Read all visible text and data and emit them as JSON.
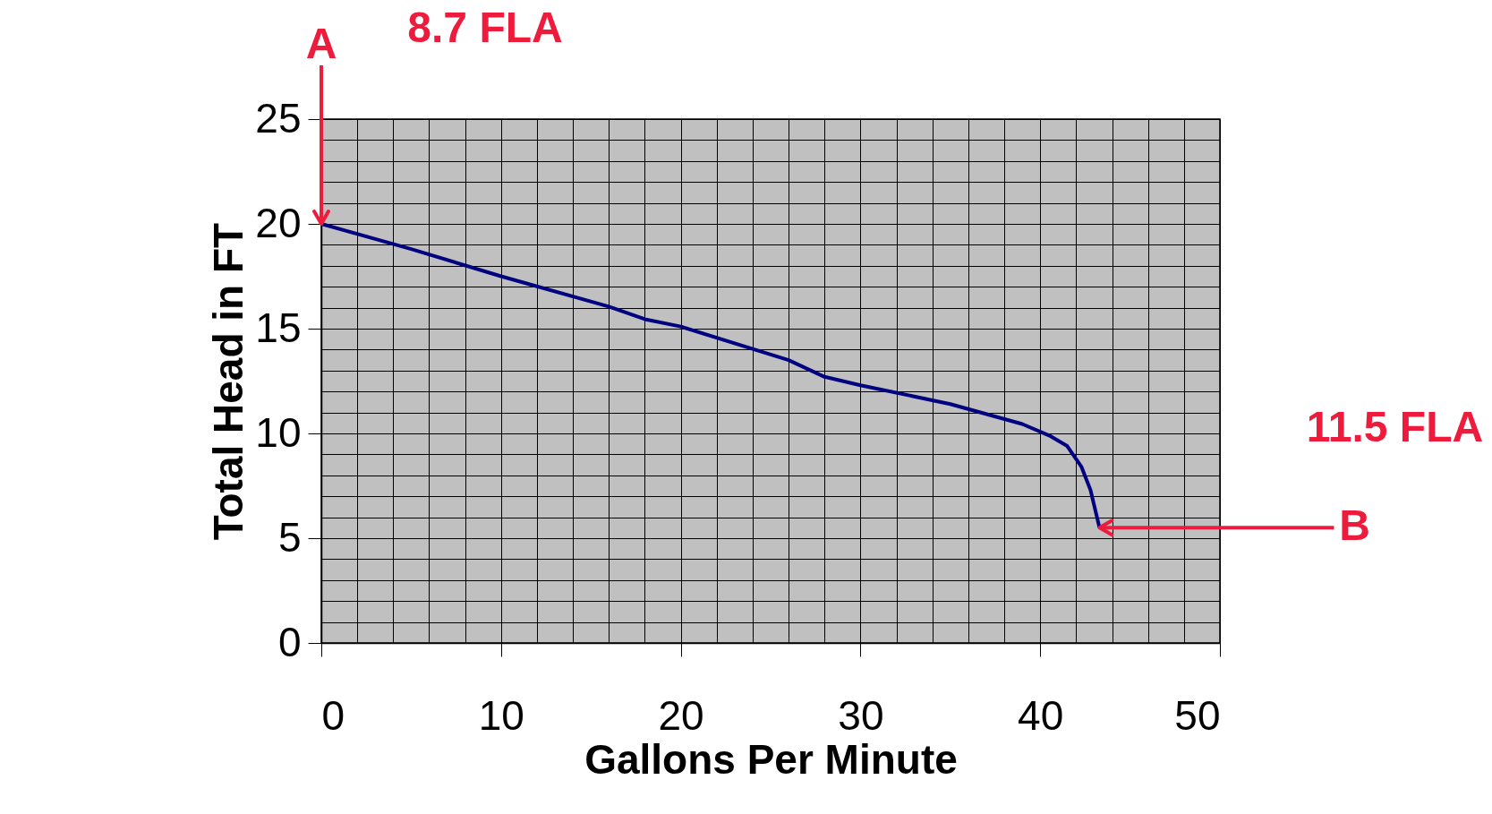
{
  "chart_data": {
    "type": "line",
    "xlabel": "Gallons Per Minute",
    "ylabel": "Total Head in FT",
    "x": [
      0,
      5,
      10,
      16,
      18,
      20,
      26,
      28,
      30,
      35,
      39,
      40.5,
      41.5,
      42.3,
      42.8,
      43.3
    ],
    "series": [
      {
        "color": "#000080",
        "values": [
          20,
          18.8,
          17.5,
          16.05,
          15.45,
          15.1,
          13.5,
          12.7,
          12.3,
          11.4,
          10.45,
          9.9,
          9.4,
          8.4,
          7.3,
          5.5
        ]
      }
    ],
    "xlim": [
      0,
      50
    ],
    "ylim": [
      0,
      25
    ],
    "xticks": [
      0,
      {
        "value": 2,
        "label": null
      },
      {
        "value": 4,
        "label": null
      },
      {
        "value": 6,
        "label": null
      },
      {
        "value": 8,
        "label": null
      },
      10,
      {
        "value": 12,
        "label": null
      },
      {
        "value": 14,
        "label": null
      },
      {
        "value": 16,
        "label": null
      },
      {
        "value": 18,
        "label": null
      },
      20,
      {
        "value": 22,
        "label": null
      },
      {
        "value": 24,
        "label": null
      },
      {
        "value": 26,
        "label": null
      },
      {
        "value": 28,
        "label": null
      },
      30,
      {
        "value": 32,
        "label": null
      },
      {
        "value": 34,
        "label": null
      },
      {
        "value": 36,
        "label": null
      },
      {
        "value": 38,
        "label": null
      },
      40,
      {
        "value": 42,
        "label": null
      },
      {
        "value": 44,
        "label": null
      },
      {
        "value": 46,
        "label": null
      },
      {
        "value": 48,
        "label": null
      },
      50
    ],
    "yticks": [
      0,
      {
        "value": 1,
        "label": null
      },
      {
        "value": 2,
        "label": null
      },
      {
        "value": 3,
        "label": null
      },
      {
        "value": 4,
        "label": null
      },
      5,
      {
        "value": 6,
        "label": null
      },
      {
        "value": 7,
        "label": null
      },
      {
        "value": 8,
        "label": null
      },
      {
        "value": 9,
        "label": null
      },
      10,
      {
        "value": 11,
        "label": null
      },
      {
        "value": 12,
        "label": null
      },
      {
        "value": 13,
        "label": null
      },
      {
        "value": 14,
        "label": null
      },
      15,
      {
        "value": 16,
        "label": null
      },
      {
        "value": 17,
        "label": null
      },
      {
        "value": 18,
        "label": null
      },
      {
        "value": 19,
        "label": null
      },
      20,
      {
        "value": 21,
        "label": null
      },
      {
        "value": 22,
        "label": null
      },
      {
        "value": 23,
        "label": null
      },
      {
        "value": 24,
        "label": null
      },
      25
    ],
    "grid": true,
    "legend": false,
    "marker": "none",
    "line_style": "solid",
    "annotations": [
      {
        "text": "A",
        "x": 0,
        "y": 20
      },
      "8.7 FLA",
      {
        "text": "B",
        "x": 43.3,
        "y": 5.5
      },
      "11.5 FLA"
    ]
  }
}
